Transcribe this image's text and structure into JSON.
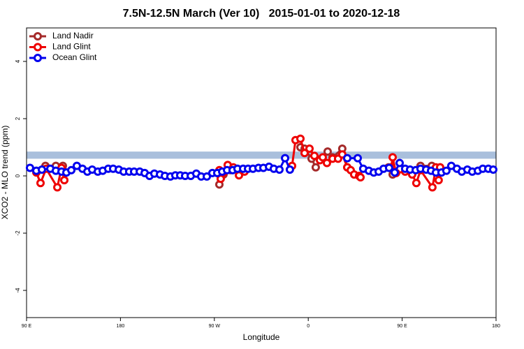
{
  "chart_data": {
    "type": "line",
    "title": "7.5N-12.5N March (Ver 10)   2015-01-01 to 2020-12-18",
    "x_label": "Longitude",
    "y_label": "XCO2 - MLO trend (ppm)",
    "xlim": [
      90,
      540
    ],
    "xticks": [
      {
        "value": 90,
        "label": "90 E"
      },
      180,
      {
        "value": 270,
        "label": "90 W"
      },
      {
        "value": 360,
        "label": "0"
      },
      {
        "value": 450,
        "label": "90 E"
      },
      {
        "value": 540,
        "label": "180"
      }
    ],
    "ylim": [
      -4.95,
      5.17
    ],
    "yticks": [
      -4,
      -2,
      0,
      2,
      4
    ],
    "band": {
      "range": [
        0.6,
        0.85
      ],
      "color": "#a9bfdc"
    },
    "legend": "top-left",
    "series": [
      {
        "name": "Land Nadir",
        "color": "#a52a2a",
        "x": [
          108.1,
          118.1,
          124.8,
          null,
          274.8,
          278.8,
          285.5,
          293.6,
          null,
          352.5,
          356.5,
          363.2,
          367.2,
          372.6,
          378.6,
          383.3,
          392.6,
          397.4,
          null,
          436.9,
          440.9,
          null,
          467.6,
          478.4,
          486.4
        ],
        "values": [
          0.35,
          0.35,
          0.35,
          null,
          -0.3,
          0.05,
          0.2,
          0.2,
          null,
          1.0,
          0.95,
          0.6,
          0.3,
          0.6,
          0.85,
          0.65,
          0.95,
          0.3,
          null,
          0.3,
          0.05,
          null,
          0.35,
          0.35,
          0.3
        ]
      },
      {
        "name": "Land Glint",
        "color": "#ee0000",
        "x": [
          99.4,
          103.4,
          108.8,
          119.5,
          123.5,
          126.2,
          null,
          274.8,
          276.1,
          278.8,
          282.8,
          288.2,
          293.6,
          298.9,
          null,
          344.5,
          347.8,
          352.5,
          356.5,
          361.2,
          365.9,
          371.2,
          373.9,
          377.9,
          383.3,
          388.6,
          392.6,
          397.4,
          400.7,
          404.0,
          408.7,
          410.1,
          null,
          439.5,
          440.9,
          444.2,
          452.9,
          459.6,
          463.6,
          467.6,
          479.0,
          482.4,
          485.0,
          486.4
        ],
        "values": [
          0.12,
          -0.25,
          0.25,
          -0.4,
          0.28,
          -0.15,
          null,
          0.2,
          -0.1,
          0.12,
          0.38,
          0.3,
          0.02,
          0.15,
          null,
          0.35,
          1.25,
          1.3,
          0.8,
          0.95,
          0.7,
          0.55,
          0.65,
          0.45,
          0.6,
          0.6,
          0.75,
          0.3,
          0.2,
          0.05,
          0.0,
          -0.05,
          null,
          0.3,
          0.65,
          0.1,
          0.15,
          0.05,
          -0.25,
          0.2,
          -0.4,
          0.3,
          -0.15,
          0.3
        ]
      },
      {
        "name": "Ocean Glint",
        "color": "#0000ee",
        "x": [
          93.3,
          99.4,
          104.7,
          112.8,
          118.1,
          123.5,
          128.2,
          132.9,
          138.2,
          143.6,
          148.3,
          152.9,
          158.3,
          163.0,
          168.3,
          173.0,
          178.4,
          183.1,
          188.4,
          193.1,
          198.5,
          203.2,
          207.9,
          212.5,
          217.9,
          222.6,
          227.9,
          232.6,
          237.3,
          242.0,
          247.4,
          252.7,
          257.4,
          262.8,
          268.1,
          272.8,
          277.5,
          282.2,
          287.5,
          292.2,
          297.6,
          302.3,
          307.0,
          312.3,
          317.0,
          322.4,
          327.0,
          332.4,
          337.8,
          342.4,
          null,
          397.4,
          407.4,
          412.7,
          418.1,
          422.8,
          427.5,
          432.2,
          437.5,
          442.9,
          447.6,
          452.9,
          457.6,
          463.0,
          467.6,
          473.0,
          477.7,
          482.4,
          487.7,
          492.4,
          497.1,
          502.5,
          507.2,
          512.5,
          517.2,
          522.6,
          527.3,
          532.6,
          537.3
        ],
        "values": [
          0.28,
          0.18,
          0.22,
          0.25,
          0.18,
          0.15,
          0.12,
          0.2,
          0.35,
          0.25,
          0.15,
          0.22,
          0.15,
          0.18,
          0.25,
          0.25,
          0.22,
          0.15,
          0.15,
          0.15,
          0.15,
          0.1,
          0.0,
          0.08,
          0.05,
          0.0,
          -0.02,
          0.02,
          0.02,
          0.0,
          0.0,
          0.08,
          -0.02,
          -0.02,
          0.1,
          0.1,
          0.15,
          0.2,
          0.2,
          0.25,
          0.25,
          0.25,
          0.25,
          0.28,
          0.28,
          0.32,
          0.25,
          0.22,
          0.62,
          0.22,
          null,
          0.62,
          0.62,
          0.25,
          0.18,
          0.12,
          0.15,
          0.25,
          0.28,
          0.12,
          0.45,
          0.25,
          0.22,
          0.2,
          0.25,
          0.22,
          0.18,
          0.12,
          0.12,
          0.18,
          0.35,
          0.25,
          0.15,
          0.22,
          0.15,
          0.18,
          0.25,
          0.25,
          0.22
        ]
      }
    ]
  }
}
